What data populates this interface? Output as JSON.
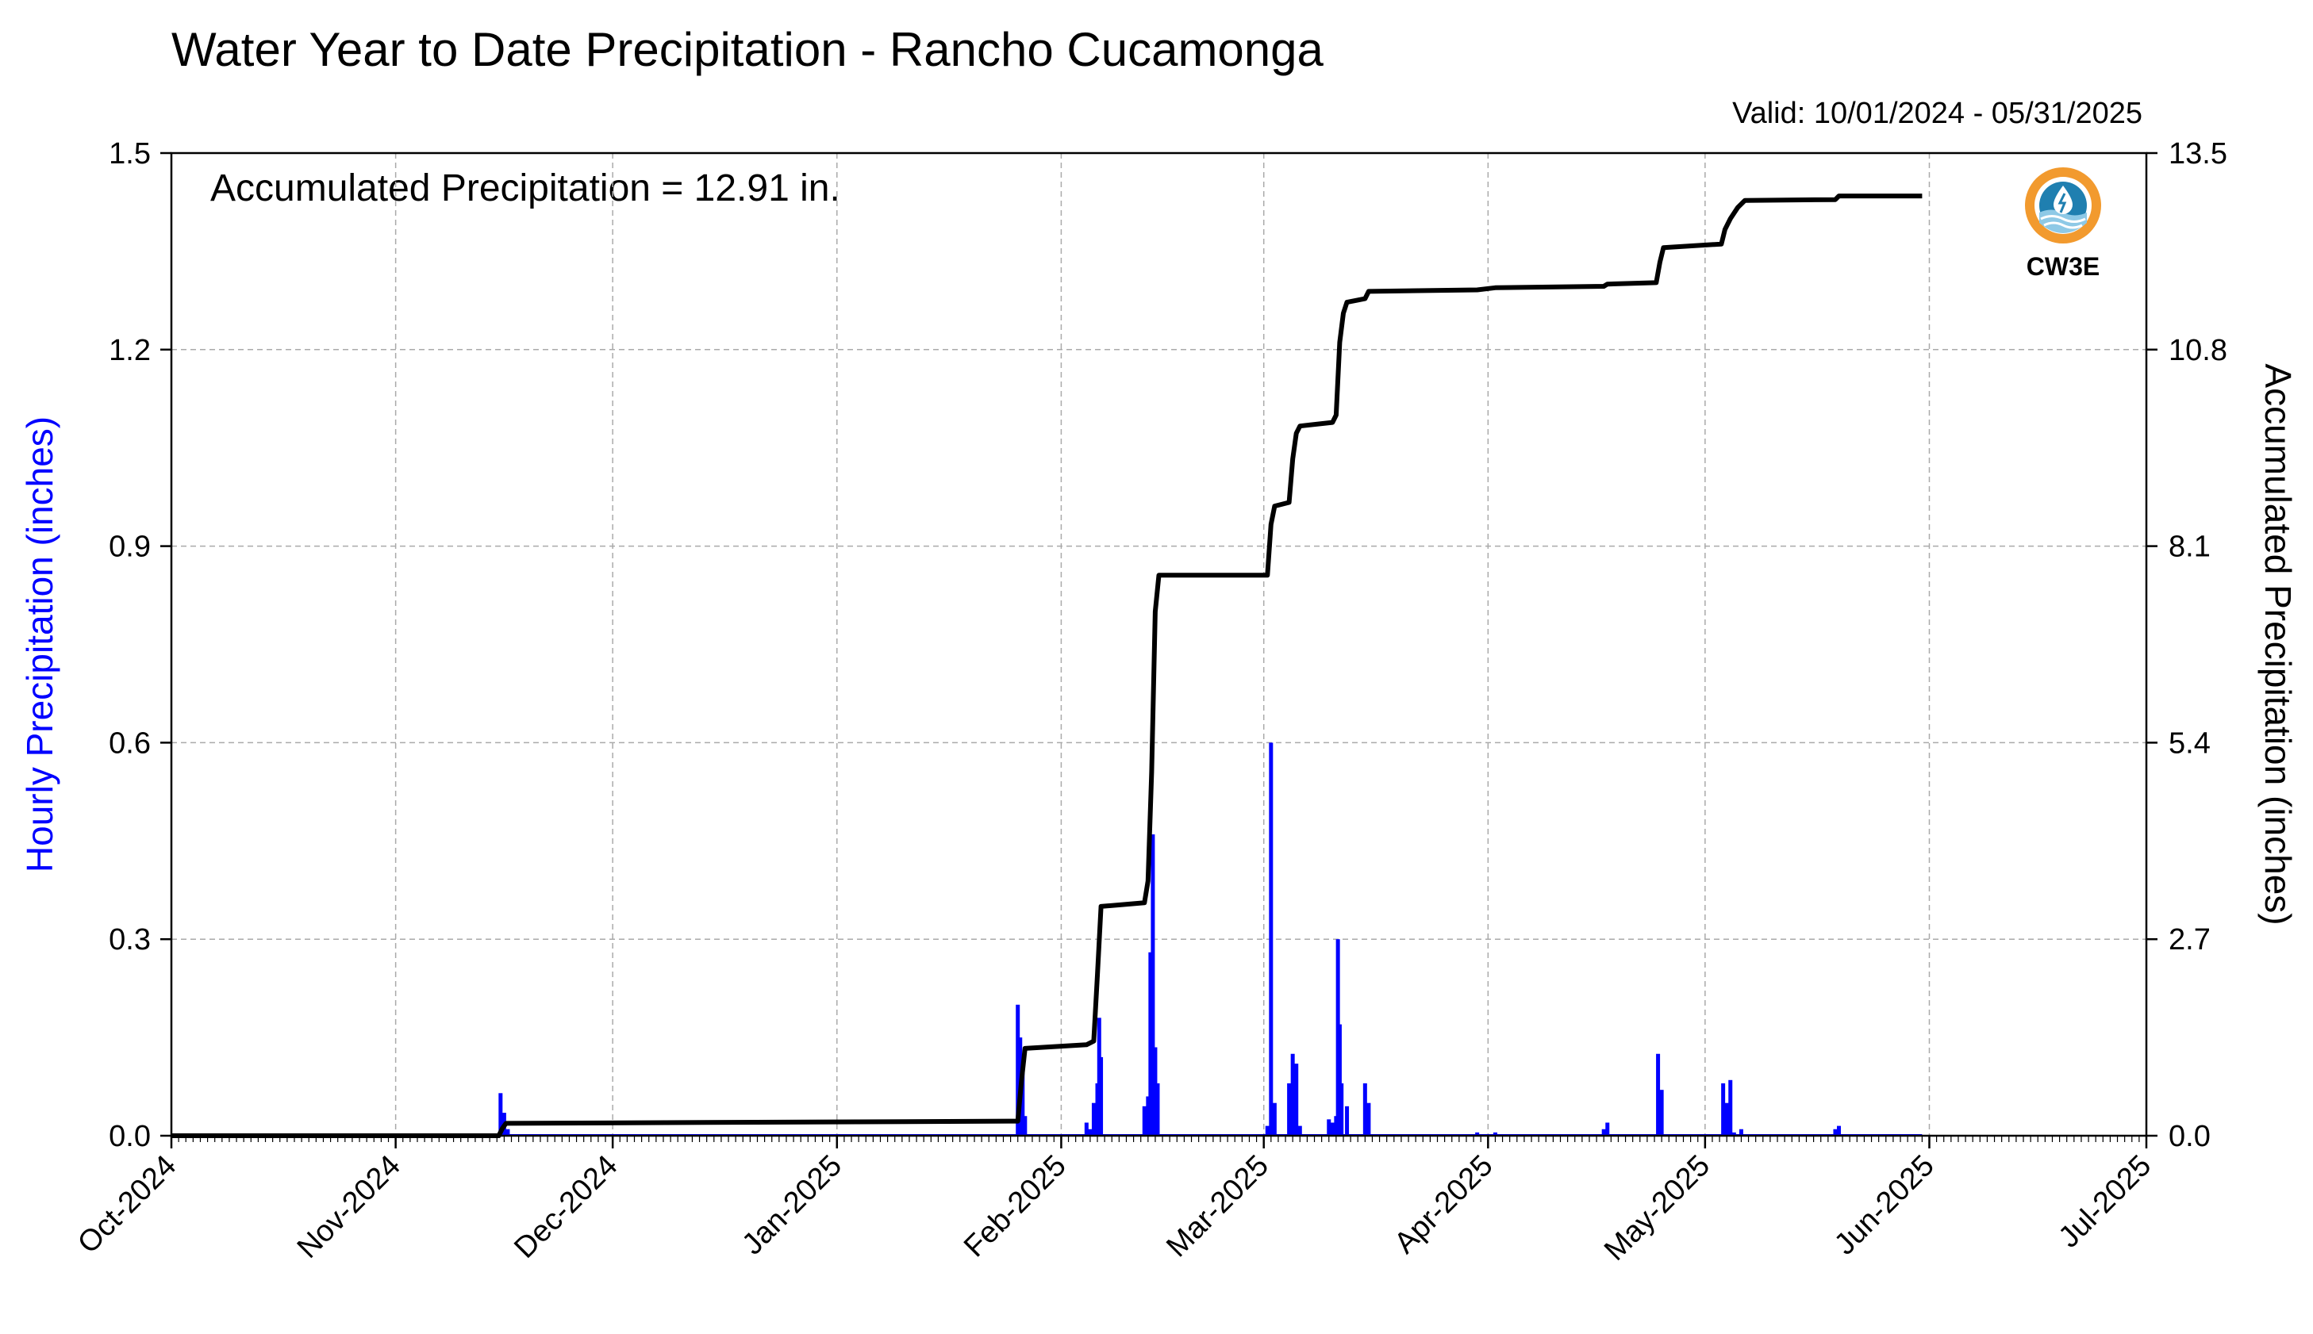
{
  "chart_data": {
    "type": "bar",
    "title": "Water Year to Date Precipitation - Rancho Cucamonga",
    "subtitle": "Valid: 10/01/2024 - 05/31/2025",
    "annotation": "Accumulated Precipitation = 12.91 in.",
    "ylabel_left": "Hourly Precipitation (inches)",
    "ylabel_right": "Accumulated Precipitation (inches)",
    "ylim_left": [
      0,
      1.5
    ],
    "ylim_right": [
      0,
      13.5
    ],
    "yticks_left": [
      "0.0",
      "0.3",
      "0.6",
      "0.9",
      "1.2",
      "1.5"
    ],
    "yticks_right": [
      "0.0",
      "2.7",
      "5.4",
      "8.1",
      "10.8",
      "13.5"
    ],
    "xlim": [
      "2024-10-01",
      "2025-07-01"
    ],
    "xticks": [
      {
        "date": "2024-10-01",
        "label": "Oct-2024"
      },
      {
        "date": "2024-11-01",
        "label": "Nov-2024"
      },
      {
        "date": "2024-12-01",
        "label": "Dec-2024"
      },
      {
        "date": "2025-01-01",
        "label": "Jan-2025"
      },
      {
        "date": "2025-02-01",
        "label": "Feb-2025"
      },
      {
        "date": "2025-03-01",
        "label": "Mar-2025"
      },
      {
        "date": "2025-04-01",
        "label": "Apr-2025"
      },
      {
        "date": "2025-05-01",
        "label": "May-2025"
      },
      {
        "date": "2025-06-01",
        "label": "Jun-2025"
      },
      {
        "date": "2025-07-01",
        "label": "Jul-2025"
      }
    ],
    "grid": true,
    "series": [
      {
        "kind": "bar",
        "axis": "left",
        "color": "#0000ff",
        "points": [
          {
            "x": "2024-11-15 12:00",
            "y": 0.065
          },
          {
            "x": "2024-11-16 00:00",
            "y": 0.035
          },
          {
            "x": "2024-11-16 12:00",
            "y": 0.01
          },
          {
            "x": "2025-01-26 00:00",
            "y": 0.2
          },
          {
            "x": "2025-01-26 08:00",
            "y": 0.15
          },
          {
            "x": "2025-01-26 16:00",
            "y": 0.1
          },
          {
            "x": "2025-01-27 00:00",
            "y": 0.03
          },
          {
            "x": "2025-02-04 12:00",
            "y": 0.02
          },
          {
            "x": "2025-02-05 00:00",
            "y": 0.01
          },
          {
            "x": "2025-02-05 12:00",
            "y": 0.05
          },
          {
            "x": "2025-02-06 00:00",
            "y": 0.08
          },
          {
            "x": "2025-02-06 06:00",
            "y": 0.18
          },
          {
            "x": "2025-02-06 12:00",
            "y": 0.12
          },
          {
            "x": "2025-02-12 12:00",
            "y": 0.045
          },
          {
            "x": "2025-02-13 00:00",
            "y": 0.06
          },
          {
            "x": "2025-02-13 08:00",
            "y": 0.28
          },
          {
            "x": "2025-02-13 16:00",
            "y": 0.46
          },
          {
            "x": "2025-02-14 00:00",
            "y": 0.135
          },
          {
            "x": "2025-02-14 08:00",
            "y": 0.08
          },
          {
            "x": "2025-03-01 12:00",
            "y": 0.015
          },
          {
            "x": "2025-03-02 00:00",
            "y": 0.6
          },
          {
            "x": "2025-03-02 12:00",
            "y": 0.05
          },
          {
            "x": "2025-03-04 12:00",
            "y": 0.08
          },
          {
            "x": "2025-03-05 00:00",
            "y": 0.125
          },
          {
            "x": "2025-03-05 12:00",
            "y": 0.11
          },
          {
            "x": "2025-03-06 00:00",
            "y": 0.015
          },
          {
            "x": "2025-03-10 00:00",
            "y": 0.025
          },
          {
            "x": "2025-03-10 12:00",
            "y": 0.02
          },
          {
            "x": "2025-03-11 00:00",
            "y": 0.03
          },
          {
            "x": "2025-03-11 06:00",
            "y": 0.3
          },
          {
            "x": "2025-03-11 12:00",
            "y": 0.17
          },
          {
            "x": "2025-03-11 18:00",
            "y": 0.08
          },
          {
            "x": "2025-03-12 12:00",
            "y": 0.045
          },
          {
            "x": "2025-03-15 00:00",
            "y": 0.08
          },
          {
            "x": "2025-03-15 12:00",
            "y": 0.05
          },
          {
            "x": "2025-03-30 12:00",
            "y": 0.005
          },
          {
            "x": "2025-04-02 00:00",
            "y": 0.005
          },
          {
            "x": "2025-04-17 00:00",
            "y": 0.01
          },
          {
            "x": "2025-04-17 12:00",
            "y": 0.02
          },
          {
            "x": "2025-04-24 12:00",
            "y": 0.125
          },
          {
            "x": "2025-04-25 00:00",
            "y": 0.07
          },
          {
            "x": "2025-05-03 12:00",
            "y": 0.08
          },
          {
            "x": "2025-05-04 00:00",
            "y": 0.05
          },
          {
            "x": "2025-05-04 12:00",
            "y": 0.085
          },
          {
            "x": "2025-05-05 00:00",
            "y": 0.005
          },
          {
            "x": "2025-05-06 00:00",
            "y": 0.01
          },
          {
            "x": "2025-05-19 00:00",
            "y": 0.01
          },
          {
            "x": "2025-05-19 12:00",
            "y": 0.015
          }
        ]
      },
      {
        "kind": "line",
        "axis": "right",
        "color": "#000000",
        "points": [
          {
            "x": "2024-10-01 00:00",
            "y": 0.0
          },
          {
            "x": "2024-11-15 06:00",
            "y": 0.0
          },
          {
            "x": "2024-11-15 18:00",
            "y": 0.1
          },
          {
            "x": "2024-11-16 06:00",
            "y": 0.17
          },
          {
            "x": "2025-01-26 00:00",
            "y": 0.2
          },
          {
            "x": "2025-01-26 12:00",
            "y": 0.75
          },
          {
            "x": "2025-01-27 00:00",
            "y": 1.2
          },
          {
            "x": "2025-02-04 12:00",
            "y": 1.25
          },
          {
            "x": "2025-02-05 12:00",
            "y": 1.3
          },
          {
            "x": "2025-02-06 00:00",
            "y": 2.2
          },
          {
            "x": "2025-02-06 12:00",
            "y": 3.15
          },
          {
            "x": "2025-02-12 12:00",
            "y": 3.2
          },
          {
            "x": "2025-02-13 00:00",
            "y": 3.5
          },
          {
            "x": "2025-02-13 12:00",
            "y": 5.0
          },
          {
            "x": "2025-02-14 00:00",
            "y": 7.2
          },
          {
            "x": "2025-02-14 12:00",
            "y": 7.7
          },
          {
            "x": "2025-03-01 12:00",
            "y": 7.7
          },
          {
            "x": "2025-03-02 00:00",
            "y": 8.4
          },
          {
            "x": "2025-03-02 12:00",
            "y": 8.65
          },
          {
            "x": "2025-03-04 12:00",
            "y": 8.7
          },
          {
            "x": "2025-03-05 00:00",
            "y": 9.3
          },
          {
            "x": "2025-03-05 12:00",
            "y": 9.65
          },
          {
            "x": "2025-03-06 00:00",
            "y": 9.75
          },
          {
            "x": "2025-03-10 12:00",
            "y": 9.8
          },
          {
            "x": "2025-03-11 00:00",
            "y": 9.9
          },
          {
            "x": "2025-03-11 12:00",
            "y": 10.9
          },
          {
            "x": "2025-03-12 00:00",
            "y": 11.3
          },
          {
            "x": "2025-03-12 12:00",
            "y": 11.45
          },
          {
            "x": "2025-03-15 00:00",
            "y": 11.5
          },
          {
            "x": "2025-03-15 12:00",
            "y": 11.6
          },
          {
            "x": "2025-03-30 12:00",
            "y": 11.62
          },
          {
            "x": "2025-04-02 00:00",
            "y": 11.65
          },
          {
            "x": "2025-04-17 00:00",
            "y": 11.67
          },
          {
            "x": "2025-04-17 12:00",
            "y": 11.7
          },
          {
            "x": "2025-04-24 06:00",
            "y": 11.72
          },
          {
            "x": "2025-04-24 18:00",
            "y": 12.0
          },
          {
            "x": "2025-04-25 06:00",
            "y": 12.2
          },
          {
            "x": "2025-05-03 06:00",
            "y": 12.25
          },
          {
            "x": "2025-05-03 18:00",
            "y": 12.45
          },
          {
            "x": "2025-05-04 12:00",
            "y": 12.6
          },
          {
            "x": "2025-05-05 12:00",
            "y": 12.75
          },
          {
            "x": "2025-05-06 12:00",
            "y": 12.85
          },
          {
            "x": "2025-05-19 00:00",
            "y": 12.86
          },
          {
            "x": "2025-05-19 12:00",
            "y": 12.91
          },
          {
            "x": "2025-05-31 00:00",
            "y": 12.91
          }
        ]
      }
    ]
  },
  "logo": {
    "text": "CW3E",
    "colors": {
      "ring_outer": "#f29a2e",
      "ring_inner": "#1f7fb0",
      "text": "#2a8abf"
    }
  }
}
